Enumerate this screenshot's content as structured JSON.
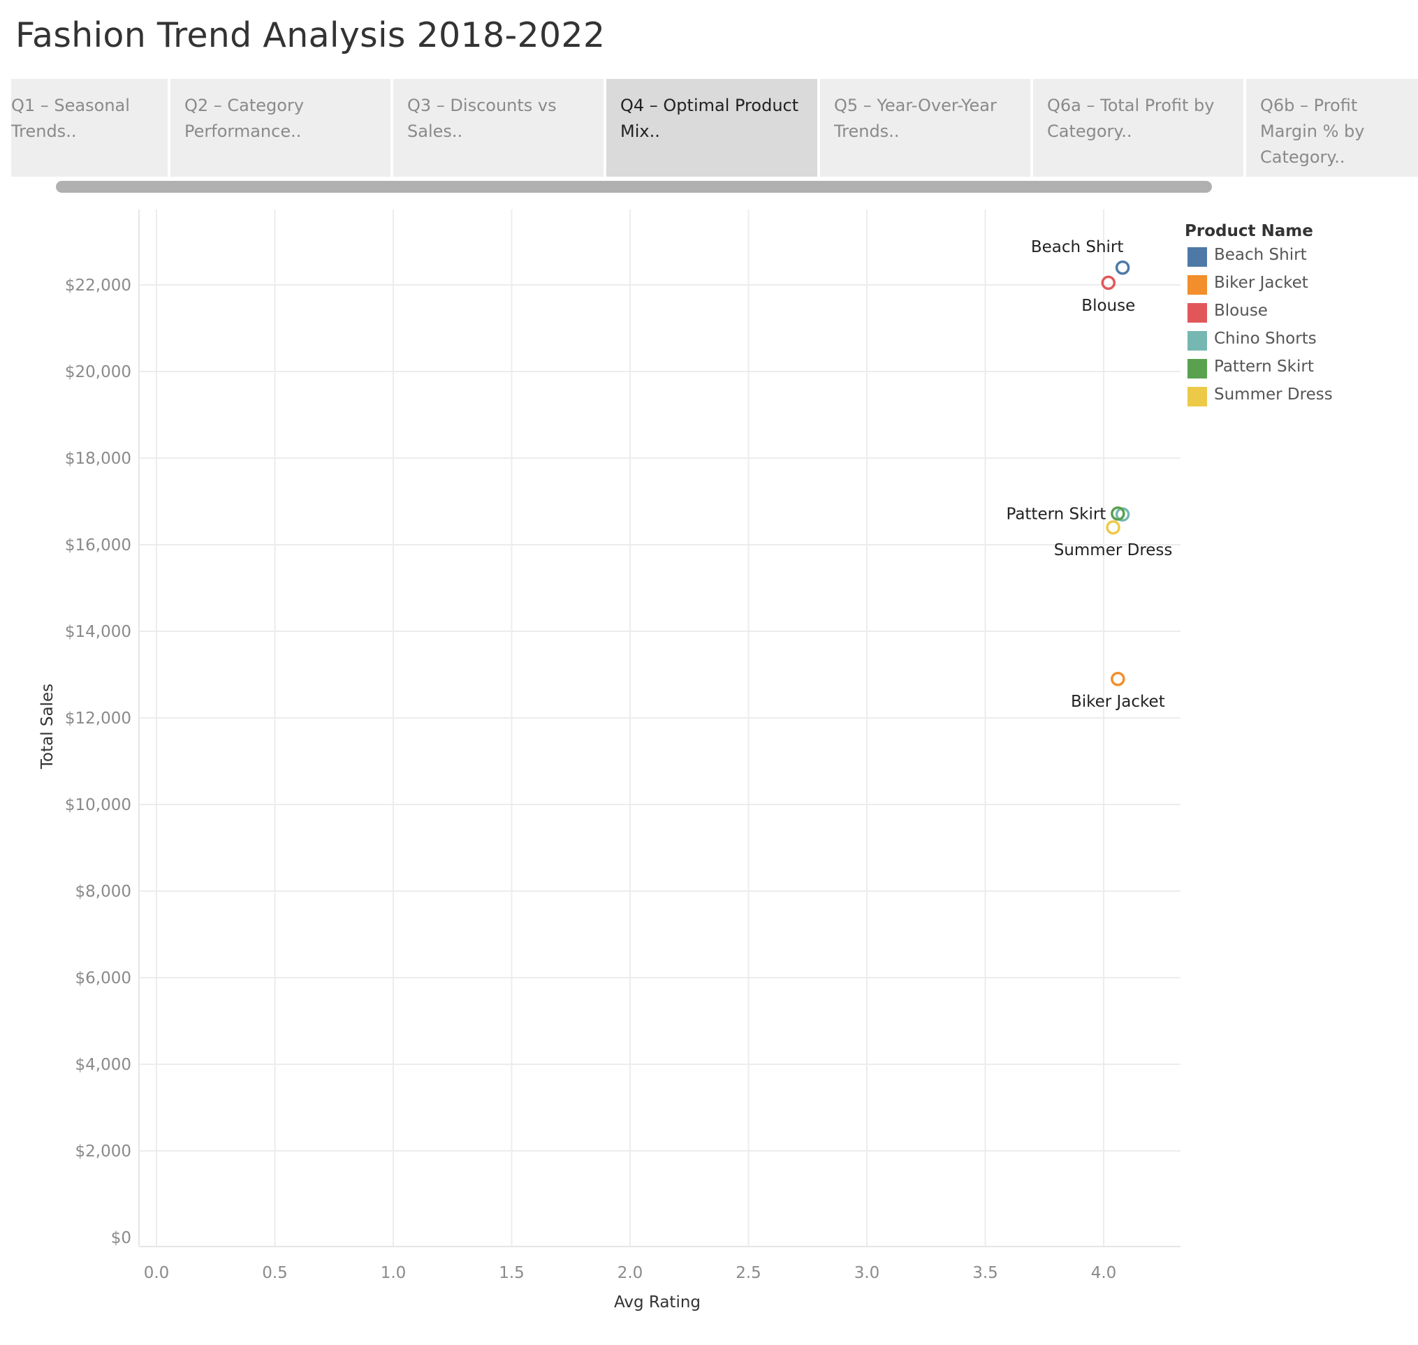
{
  "page_title": "Fashion Trend Analysis 2018-2022",
  "tabs": [
    {
      "label": "Q1 – Seasonal Trends..",
      "active": false
    },
    {
      "label": "Q2 – Category Performance..",
      "active": false
    },
    {
      "label": "Q3 – Discounts vs Sales..",
      "active": false
    },
    {
      "label": "Q4 – Optimal Product Mix..",
      "active": true
    },
    {
      "label": "Q5 – Year-Over-Year Trends..",
      "active": false
    },
    {
      "label": "Q6a – Total Profit by Category..",
      "active": false
    },
    {
      "label": "Q6b – Profit Margin % by Category..",
      "active": false
    }
  ],
  "chart_data": {
    "type": "scatter",
    "title": "",
    "xlabel": "Avg Rating",
    "ylabel": "Total Sales",
    "xlim": [
      0,
      4.3
    ],
    "ylim": [
      0,
      23800
    ],
    "x_ticks": [
      0.0,
      0.5,
      1.0,
      1.5,
      2.0,
      2.5,
      3.0,
      3.5,
      4.0
    ],
    "x_tick_labels": [
      "0.0",
      "0.5",
      "1.0",
      "1.5",
      "2.0",
      "2.5",
      "3.0",
      "3.5",
      "4.0"
    ],
    "y_ticks": [
      0,
      2000,
      4000,
      6000,
      8000,
      10000,
      12000,
      14000,
      16000,
      18000,
      20000,
      22000
    ],
    "y_tick_labels": [
      "$0",
      "$2,000",
      "$4,000",
      "$6,000",
      "$8,000",
      "$10,000",
      "$12,000",
      "$14,000",
      "$16,000",
      "$18,000",
      "$20,000",
      "$22,000"
    ],
    "grid": true,
    "legend_title": "Product Name",
    "legend_position": "top-right",
    "series": [
      {
        "name": "Beach Shirt",
        "color": "#4e79a7",
        "x": 4.08,
        "y": 22400,
        "label": "Beach Shirt",
        "label_pos": "above-left"
      },
      {
        "name": "Biker Jacket",
        "color": "#f28e2b",
        "x": 4.06,
        "y": 12900,
        "label": "Biker Jacket",
        "label_pos": "below"
      },
      {
        "name": "Blouse",
        "color": "#e15759",
        "x": 4.02,
        "y": 22050,
        "label": "Blouse",
        "label_pos": "below"
      },
      {
        "name": "Chino Shorts",
        "color": "#76b7b2",
        "x": 4.08,
        "y": 16700,
        "label": "",
        "label_pos": "none"
      },
      {
        "name": "Pattern Skirt",
        "color": "#59a14f",
        "x": 4.06,
        "y": 16720,
        "label": "Pattern Skirt",
        "label_pos": "left"
      },
      {
        "name": "Summer Dress",
        "color": "#edc948",
        "x": 4.04,
        "y": 16400,
        "label": "Summer Dress",
        "label_pos": "below"
      }
    ]
  }
}
